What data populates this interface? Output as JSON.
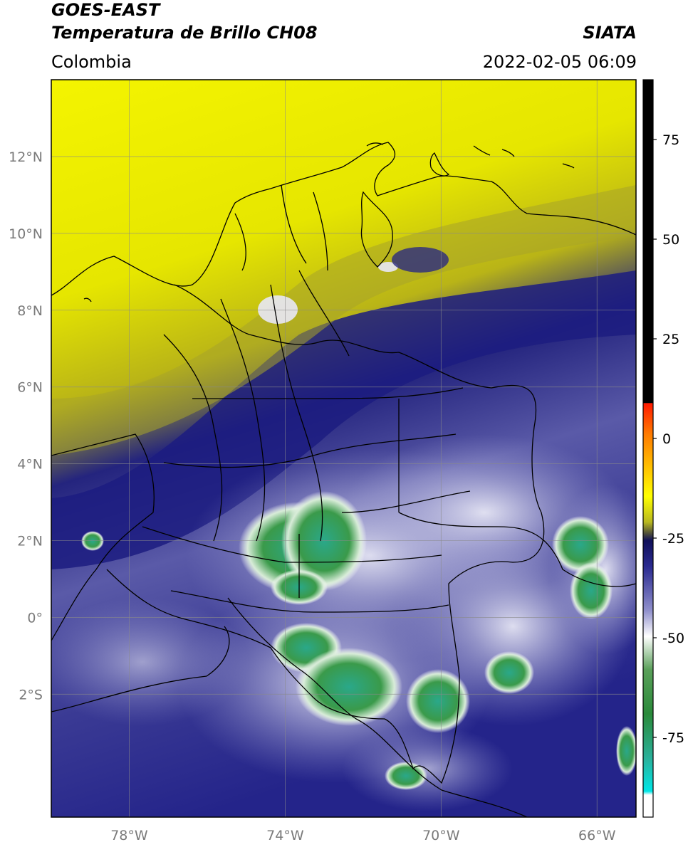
{
  "header": {
    "satellite": "GOES-EAST",
    "product": "Temperatura de Brillo CH08",
    "agency": "SIATA",
    "region": "Colombia",
    "datetime": "2022-02-05 06:09"
  },
  "map": {
    "lon_range": [
      -80,
      -65
    ],
    "lat_range": [
      -5.2,
      14
    ],
    "lat_ticks": [
      {
        "value": 12,
        "label": "12°N"
      },
      {
        "value": 10,
        "label": "10°N"
      },
      {
        "value": 8,
        "label": "8°N"
      },
      {
        "value": 6,
        "label": "6°N"
      },
      {
        "value": 4,
        "label": "4°N"
      },
      {
        "value": 2,
        "label": "2°N"
      },
      {
        "value": 0,
        "label": "0°"
      },
      {
        "value": -2,
        "label": "2°S"
      }
    ],
    "lon_ticks": [
      {
        "value": -78,
        "label": "78°W"
      },
      {
        "value": -74,
        "label": "74°W"
      },
      {
        "value": -70,
        "label": "70°W"
      },
      {
        "value": -66,
        "label": "66°W"
      }
    ]
  },
  "colorbar": {
    "range": [
      -95,
      90
    ],
    "ticks": [
      {
        "value": 75,
        "label": "75"
      },
      {
        "value": 50,
        "label": "50"
      },
      {
        "value": 25,
        "label": "25"
      },
      {
        "value": 0,
        "label": "0"
      },
      {
        "value": -25,
        "label": "-25"
      },
      {
        "value": -50,
        "label": "-50"
      },
      {
        "value": -75,
        "label": "-75"
      }
    ],
    "colors": {
      "black_top": "#000000",
      "red": "#ff2a00",
      "orange": "#ff9900",
      "yellow": "#ffff00",
      "olive": "#8c8c20",
      "navy": "#14147a",
      "lavender": "#9a9ad0",
      "white": "#ffffff",
      "green": "#3a9a3a",
      "teal": "#30c8b0",
      "cyan": "#00e0e0"
    }
  }
}
